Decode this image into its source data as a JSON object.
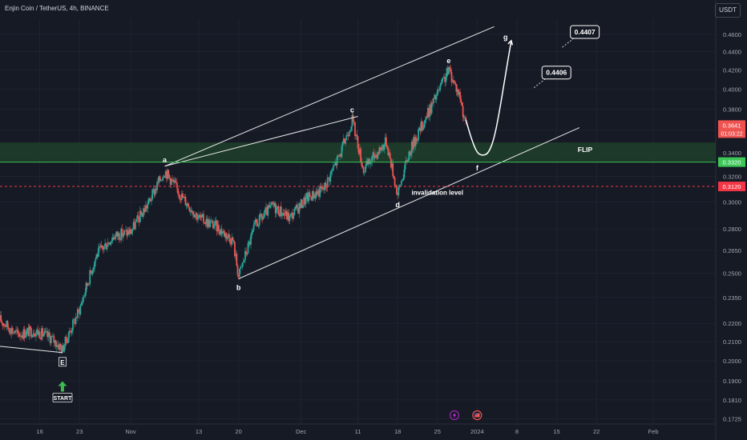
{
  "header": {
    "symbol_title": "Enjin Coin / TetherUS, 4h, BINANCE",
    "currency_button": "USDT"
  },
  "colors": {
    "background": "#161a25",
    "up_candle": "#26a69a",
    "down_candle": "#ef5350",
    "zone_fill": "#1e3d2a",
    "level_green": "#3cc757",
    "level_red": "#f23645",
    "text": "#d1d4dc",
    "axis_text": "#a3a6af"
  },
  "chart_data": {
    "type": "candlestick",
    "timeframe": "4h",
    "y_scale": "log",
    "ylim": [
      0.1702,
      0.478
    ],
    "y_ticks": [
      0.1725,
      0.181,
      0.19,
      0.2,
      0.21,
      0.22,
      0.235,
      0.25,
      0.265,
      0.28,
      0.3,
      0.32,
      0.34,
      0.36,
      0.38,
      0.4,
      0.42,
      0.44,
      0.46
    ],
    "y_tick_labels": [
      "0.1725",
      "0.1810",
      "0.1900",
      "0.2000",
      "0.2100",
      "0.2200",
      "0.2350",
      "0.2500",
      "0.2650",
      "0.2800",
      "0.3000",
      "0.3200",
      "0.3400",
      "0.3600",
      "0.3800",
      "0.4000",
      "0.4200",
      "0.4400",
      "0.4600"
    ],
    "xlim": [
      "2023-10-09",
      "2024-02-12"
    ],
    "x_ticks": [
      {
        "date": "2023-10-16",
        "label": "16"
      },
      {
        "date": "2023-10-23",
        "label": "23"
      },
      {
        "date": "2023-11-01",
        "label": "Nov"
      },
      {
        "date": "2023-11-13",
        "label": "13"
      },
      {
        "date": "2023-11-20",
        "label": "20"
      },
      {
        "date": "2023-12-01",
        "label": "Dec"
      },
      {
        "date": "2023-12-11",
        "label": "11"
      },
      {
        "date": "2023-12-18",
        "label": "18"
      },
      {
        "date": "2023-12-25",
        "label": "25"
      },
      {
        "date": "2024-01-01",
        "label": "2024"
      },
      {
        "date": "2024-01-08",
        "label": "8"
      },
      {
        "date": "2024-01-15",
        "label": "15"
      },
      {
        "date": "2024-01-22",
        "label": "22"
      },
      {
        "date": "2024-02-01",
        "label": "Feb"
      }
    ],
    "price_path": [
      {
        "date": "2023-10-09",
        "price": 0.222
      },
      {
        "date": "2023-10-12",
        "price": 0.214
      },
      {
        "date": "2023-10-15",
        "price": 0.216
      },
      {
        "date": "2023-10-18",
        "price": 0.212
      },
      {
        "date": "2023-10-20",
        "price": 0.206
      },
      {
        "date": "2023-10-23",
        "price": 0.228
      },
      {
        "date": "2023-10-26",
        "price": 0.262
      },
      {
        "date": "2023-10-29",
        "price": 0.275
      },
      {
        "date": "2023-11-01",
        "price": 0.278
      },
      {
        "date": "2023-11-04",
        "price": 0.298
      },
      {
        "date": "2023-11-07",
        "price": 0.325
      },
      {
        "date": "2023-11-10",
        "price": 0.304
      },
      {
        "date": "2023-11-13",
        "price": 0.288
      },
      {
        "date": "2023-11-16",
        "price": 0.282
      },
      {
        "date": "2023-11-19",
        "price": 0.272
      },
      {
        "date": "2023-11-20",
        "price": 0.248
      },
      {
        "date": "2023-11-23",
        "price": 0.283
      },
      {
        "date": "2023-11-26",
        "price": 0.297
      },
      {
        "date": "2023-11-29",
        "price": 0.288
      },
      {
        "date": "2023-12-02",
        "price": 0.303
      },
      {
        "date": "2023-12-05",
        "price": 0.31
      },
      {
        "date": "2023-12-08",
        "price": 0.34
      },
      {
        "date": "2023-12-10",
        "price": 0.37
      },
      {
        "date": "2023-12-12",
        "price": 0.325
      },
      {
        "date": "2023-12-14",
        "price": 0.338
      },
      {
        "date": "2023-12-16",
        "price": 0.35
      },
      {
        "date": "2023-12-18",
        "price": 0.305
      },
      {
        "date": "2023-12-20",
        "price": 0.34
      },
      {
        "date": "2023-12-23",
        "price": 0.372
      },
      {
        "date": "2023-12-25",
        "price": 0.395
      },
      {
        "date": "2023-12-27",
        "price": 0.42
      },
      {
        "date": "2023-12-29",
        "price": 0.392
      },
      {
        "date": "2023-12-30",
        "price": 0.364
      }
    ],
    "zone": {
      "from": 0.3325,
      "to": 0.349,
      "label": "FLIP"
    },
    "levels": [
      {
        "price": 0.332,
        "label": "0.3320",
        "color": "#3cc757",
        "style": "solid"
      },
      {
        "price": 0.312,
        "label": "0.3120",
        "color": "#f23645",
        "style": "dashed",
        "annotation": "invalidation level"
      }
    ],
    "last_price": {
      "price": 0.3641,
      "label": "0.3641",
      "countdown": "01:03:22"
    },
    "wave_points": [
      {
        "label": "E",
        "date": "2023-10-20",
        "price": 0.2042,
        "boxed": true
      },
      {
        "label": "a",
        "date": "2023-11-07",
        "price": 0.3285
      },
      {
        "label": "b",
        "date": "2023-11-20",
        "price": 0.2465
      },
      {
        "label": "c",
        "date": "2023-12-10",
        "price": 0.373
      },
      {
        "label": "d",
        "date": "2023-12-18",
        "price": 0.3045
      },
      {
        "label": "e",
        "date": "2023-12-27",
        "price": 0.423
      },
      {
        "label": "f",
        "date": "2024-01-01",
        "price": 0.3345
      },
      {
        "label": "g",
        "date": "2024-01-06",
        "price": 0.449
      }
    ],
    "trend_lines": [
      {
        "from": {
          "date": "2023-10-09",
          "price": 0.2075
        },
        "to": {
          "date": "2023-10-20",
          "price": 0.2042
        }
      },
      {
        "from": {
          "date": "2023-11-07",
          "price": 0.3285
        },
        "to": {
          "date": "2023-12-11",
          "price": 0.373
        }
      },
      {
        "from": {
          "date": "2023-11-20",
          "price": 0.2465
        },
        "to": {
          "date": "2024-01-19",
          "price": 0.3625
        }
      },
      {
        "from": {
          "date": "2023-11-07",
          "price": 0.3285
        },
        "to": {
          "date": "2024-01-04",
          "price": 0.469
        }
      }
    ],
    "projection_path": [
      {
        "date": "2023-12-30",
        "price": 0.37
      },
      {
        "date": "2023-12-31",
        "price": 0.352
      },
      {
        "date": "2024-01-01",
        "price": 0.3395
      },
      {
        "date": "2024-01-02",
        "price": 0.3375
      },
      {
        "date": "2024-01-03",
        "price": 0.3395
      },
      {
        "date": "2024-01-04",
        "price": 0.3525
      },
      {
        "date": "2024-01-05",
        "price": 0.38
      },
      {
        "date": "2024-01-06",
        "price": 0.4155
      },
      {
        "date": "2024-01-07",
        "price": 0.4525
      }
    ],
    "targets": [
      {
        "label": "0.4406",
        "date": "2024-01-11",
        "price": 0.4013
      },
      {
        "label": "0.4407",
        "date": "2024-01-16",
        "price": 0.445
      }
    ],
    "annotations": [
      {
        "text": "START",
        "date": "2023-10-20",
        "price": 0.1845
      },
      {
        "text": "FLIP",
        "date": "2024-01-20",
        "price": 0.3405
      },
      {
        "text": "invalidation level",
        "date": "2023-12-25",
        "price": 0.3055
      }
    ],
    "event_icons": [
      {
        "name": "lightning-event-icon",
        "date": "2023-12-28"
      },
      {
        "name": "us-flag-event-icon",
        "date": "2024-01-01"
      }
    ]
  }
}
